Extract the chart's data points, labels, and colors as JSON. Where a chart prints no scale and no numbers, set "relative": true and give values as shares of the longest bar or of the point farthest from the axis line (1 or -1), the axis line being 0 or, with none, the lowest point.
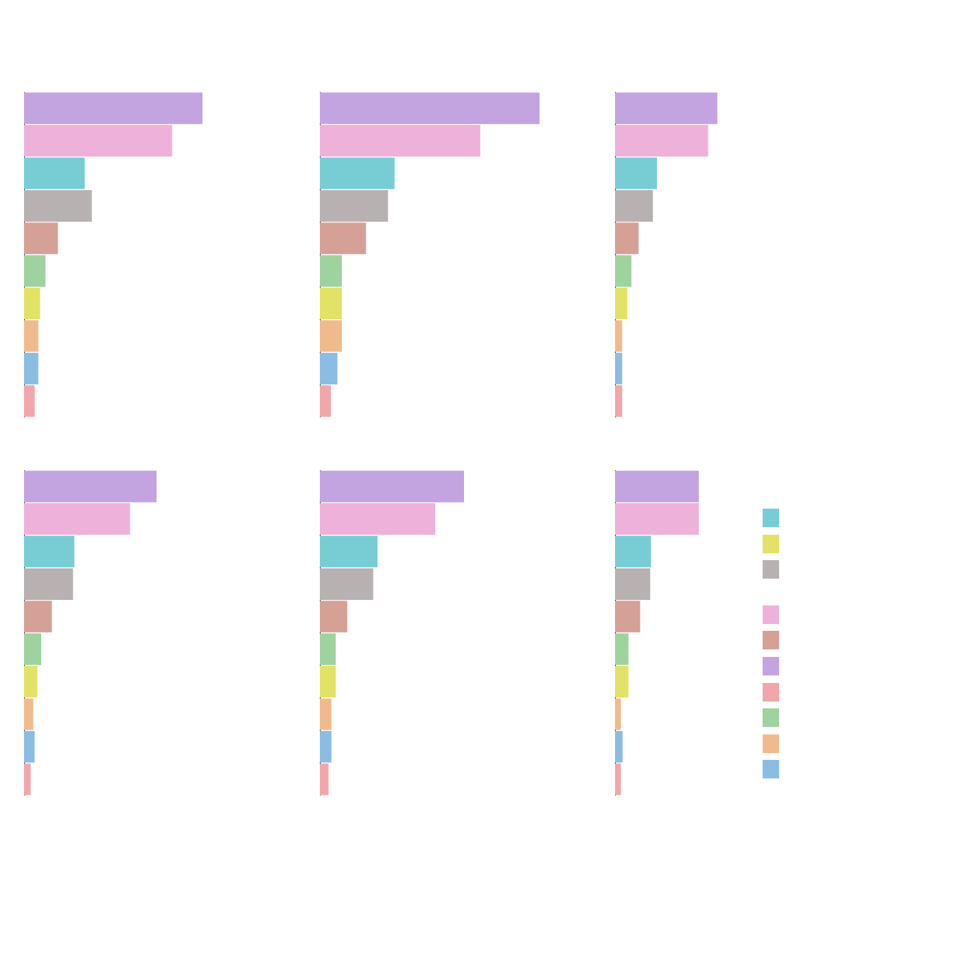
{
  "chart_data": [
    {
      "type": "bar",
      "orientation": "horizontal",
      "relative": true,
      "categories": [
        null,
        null,
        null,
        null,
        null,
        null,
        null,
        null,
        null,
        null
      ],
      "values": [
        1,
        0.83,
        0.34,
        0.38,
        0.19,
        0.12,
        0.09,
        0.08,
        0.08,
        0.06
      ],
      "colors": [
        "#c4a3e1",
        "#eeb1da",
        "#78cdd5",
        "#b7b1b1",
        "#d5a196",
        "#9ed29e",
        "#e2e266",
        "#efbb8d",
        "#8bbde3",
        "#f1a7a9"
      ]
    },
    {
      "type": "bar",
      "orientation": "horizontal",
      "relative": true,
      "categories": [
        null,
        null,
        null,
        null,
        null,
        null,
        null,
        null,
        null,
        null
      ],
      "values": [
        1,
        0.73,
        0.34,
        0.31,
        0.21,
        0.1,
        0.1,
        0.1,
        0.08,
        0.05
      ],
      "colors": [
        "#c4a3e1",
        "#eeb1da",
        "#78cdd5",
        "#b7b1b1",
        "#d5a196",
        "#9ed29e",
        "#e2e266",
        "#efbb8d",
        "#8bbde3",
        "#f1a7a9"
      ]
    },
    {
      "type": "bar",
      "orientation": "horizontal",
      "relative": true,
      "categories": [
        null,
        null,
        null,
        null,
        null,
        null,
        null,
        null,
        null,
        null
      ],
      "values": [
        1,
        0.91,
        0.41,
        0.37,
        0.23,
        0.16,
        0.12,
        0.07,
        0.07,
        0.07
      ],
      "colors": [
        "#c4a3e1",
        "#eeb1da",
        "#78cdd5",
        "#b7b1b1",
        "#d5a196",
        "#9ed29e",
        "#e2e266",
        "#efbb8d",
        "#8bbde3",
        "#f1a7a9"
      ]
    },
    {
      "type": "bar",
      "orientation": "horizontal",
      "relative": true,
      "categories": [
        null,
        null,
        null,
        null,
        null,
        null,
        null,
        null,
        null,
        null
      ],
      "values": [
        1,
        0.8,
        0.38,
        0.37,
        0.21,
        0.13,
        0.1,
        0.07,
        0.08,
        0.05
      ],
      "colors": [
        "#c4a3e1",
        "#eeb1da",
        "#78cdd5",
        "#b7b1b1",
        "#d5a196",
        "#9ed29e",
        "#e2e266",
        "#efbb8d",
        "#8bbde3",
        "#f1a7a9"
      ]
    },
    {
      "type": "bar",
      "orientation": "horizontal",
      "relative": true,
      "categories": [
        null,
        null,
        null,
        null,
        null,
        null,
        null,
        null,
        null,
        null
      ],
      "values": [
        1,
        0.8,
        0.4,
        0.37,
        0.19,
        0.11,
        0.11,
        0.08,
        0.08,
        0.06
      ],
      "colors": [
        "#c4a3e1",
        "#eeb1da",
        "#78cdd5",
        "#b7b1b1",
        "#d5a196",
        "#9ed29e",
        "#e2e266",
        "#efbb8d",
        "#8bbde3",
        "#f1a7a9"
      ]
    },
    {
      "type": "bar",
      "orientation": "horizontal",
      "relative": true,
      "categories": [
        null,
        null,
        null,
        null,
        null,
        null,
        null,
        null,
        null,
        null
      ],
      "values": [
        1,
        1,
        0.43,
        0.42,
        0.3,
        0.16,
        0.16,
        0.07,
        0.09,
        0.07
      ],
      "colors": [
        "#c4a3e1",
        "#eeb1da",
        "#78cdd5",
        "#b7b1b1",
        "#d5a196",
        "#9ed29e",
        "#e2e266",
        "#efbb8d",
        "#8bbde3",
        "#f1a7a9"
      ]
    }
  ]
}
